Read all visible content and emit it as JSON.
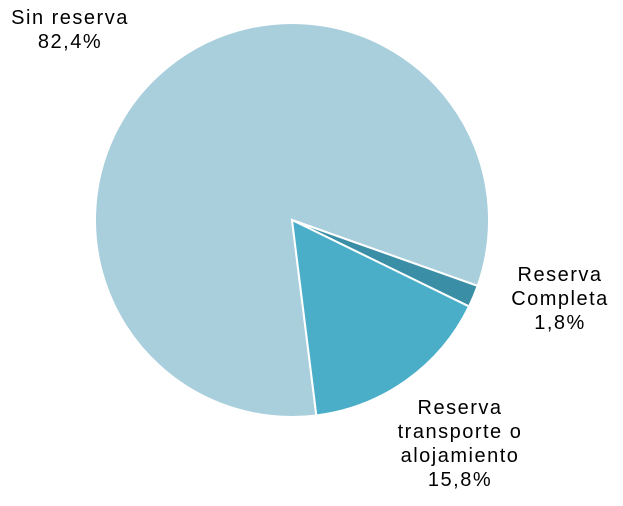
{
  "chart_data": {
    "type": "pie",
    "categories": [
      "Sin reserva",
      "Reserva Completa",
      "Reserva transporte o alojamiento"
    ],
    "values": [
      82.4,
      1.8,
      15.8
    ],
    "value_labels": [
      "82,4%",
      "1,8%",
      "15,8%"
    ],
    "colors": [
      "#a9cfdc",
      "#3a8fa6",
      "#4aaec8"
    ]
  }
}
